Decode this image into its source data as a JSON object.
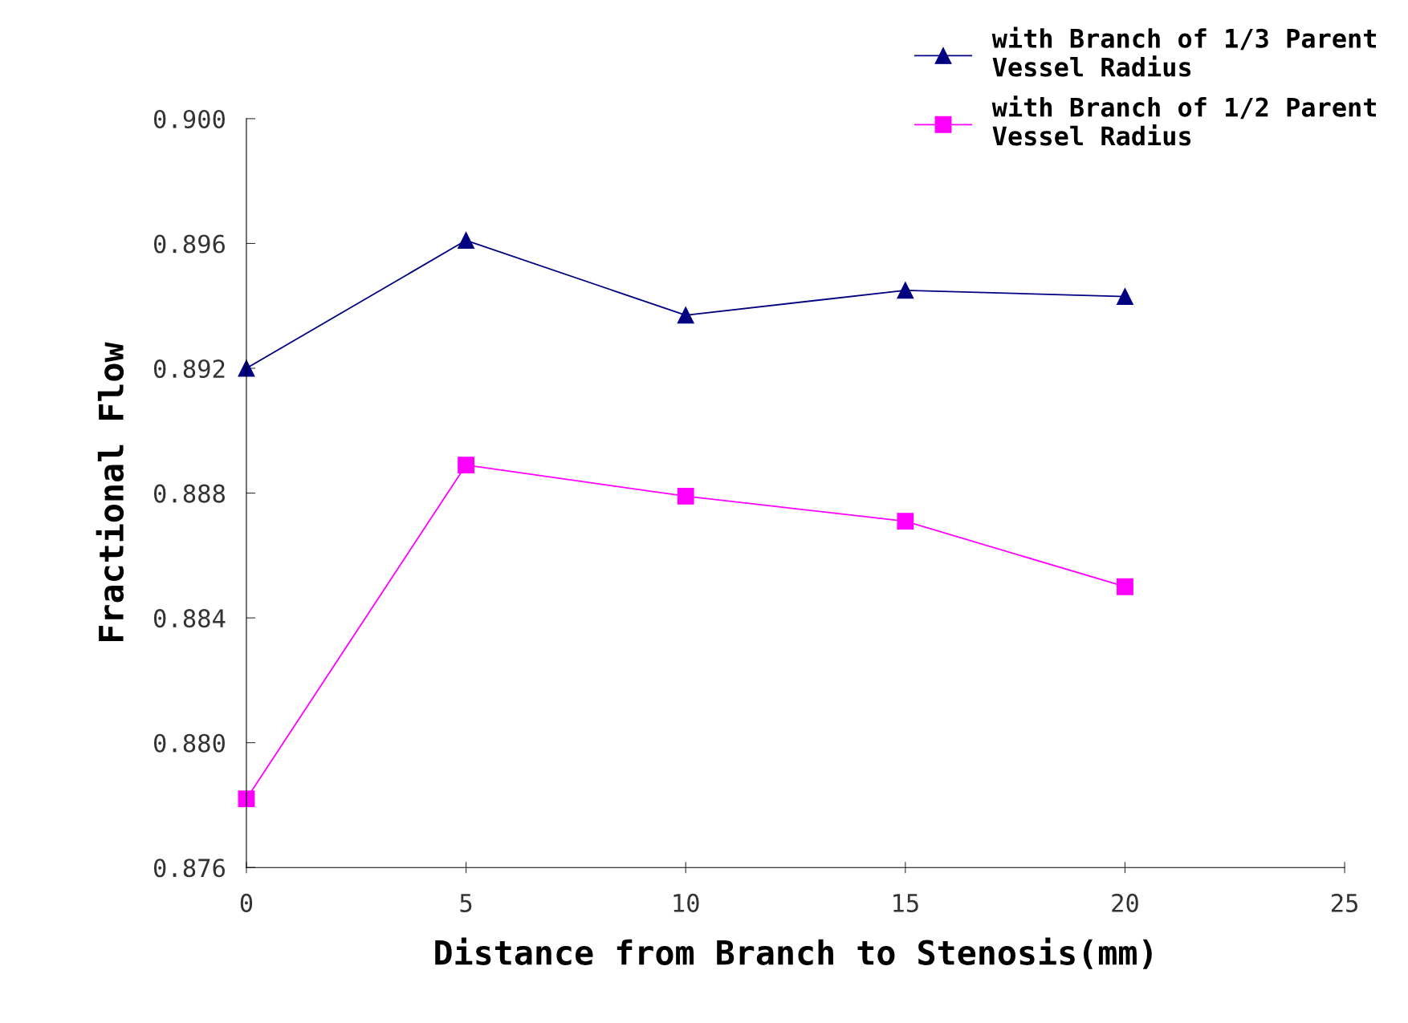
{
  "chart_data": {
    "type": "line",
    "xlabel": "Distance from Branch to Stenosis(mm)",
    "ylabel": "Fractional Flow",
    "x": [
      0,
      5,
      10,
      15,
      20
    ],
    "series": [
      {
        "name": "with Branch of 1/3 Parent\nVessel Radius",
        "color": "#000080",
        "marker": "triangle",
        "values": [
          0.892,
          0.8961,
          0.8937,
          0.8945,
          0.8943
        ]
      },
      {
        "name": "with Branch of 1/2 Parent\nVessel Radius",
        "color": "#ff00ff",
        "marker": "square",
        "values": [
          0.8782,
          0.8889,
          0.8879,
          0.8871,
          0.885
        ]
      }
    ],
    "xlim": [
      0,
      25
    ],
    "xticks": [
      0,
      5,
      10,
      15,
      20,
      25
    ],
    "ylim": [
      0.876,
      0.9
    ],
    "yticks": [
      {
        "value": 0.876,
        "label": "0.876"
      },
      {
        "value": 0.88,
        "label": "0.880"
      },
      {
        "value": 0.884,
        "label": "0.884"
      },
      {
        "value": 0.888,
        "label": "0.888"
      },
      {
        "value": 0.892,
        "label": "0.892"
      },
      {
        "value": 0.896,
        "label": "0.896"
      },
      {
        "value": 0.9,
        "label": "0.900"
      }
    ],
    "grid": false,
    "legend": "top right",
    "line_style": "solid"
  }
}
